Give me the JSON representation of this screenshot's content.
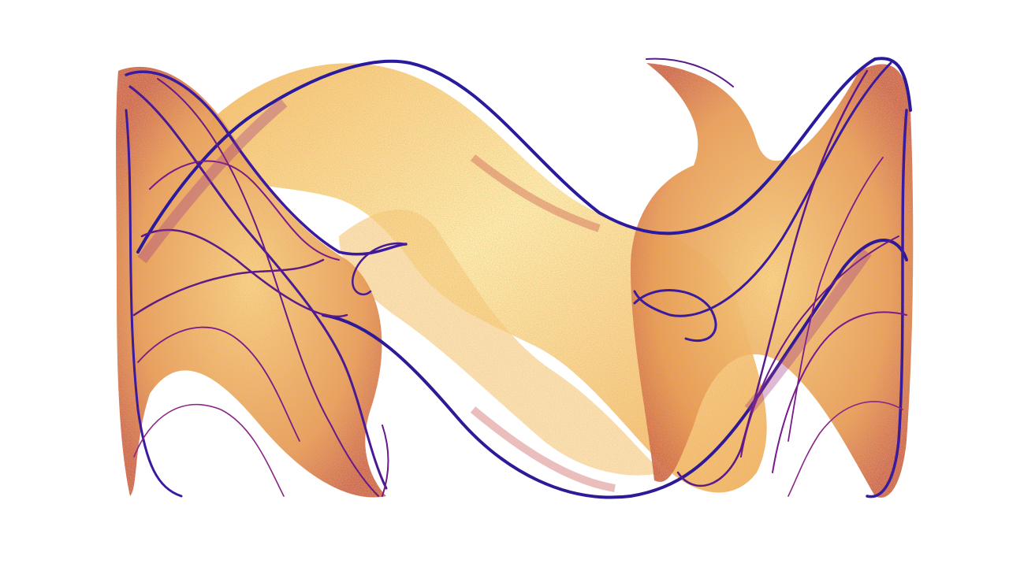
{
  "image": {
    "subject": "strange-attractor-density-render",
    "background_color": "#ffffff",
    "palette": {
      "low": "#f7e07a",
      "low_light": "#fbf0b0",
      "mid": "#e8903a",
      "mid_dark": "#c2453e",
      "high": "#7a1a8c",
      "edge": "#3a1a9e",
      "edge_dark": "#2a1680"
    },
    "icons": {
      "left_lobe": "attractor-left-lobe",
      "center_band": "attractor-center-band",
      "right_lobe": "attractor-right-lobe"
    }
  }
}
